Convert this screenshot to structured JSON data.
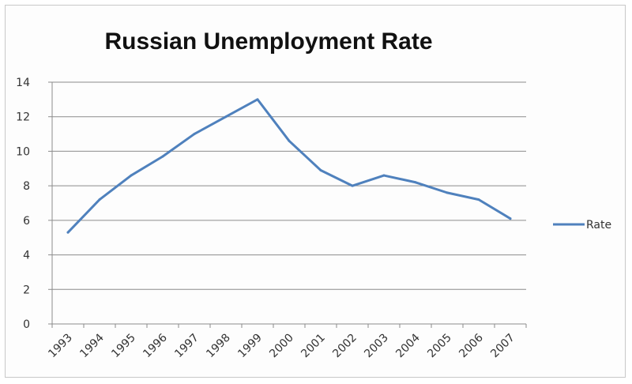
{
  "chart_data": {
    "type": "line",
    "title": "Russian Unemployment Rate",
    "xlabel": "",
    "ylabel": "",
    "categories": [
      "1993",
      "1994",
      "1995",
      "1996",
      "1997",
      "1998",
      "1999",
      "2000",
      "2001",
      "2002",
      "2003",
      "2004",
      "2005",
      "2006",
      "2007"
    ],
    "series": [
      {
        "name": "Rate",
        "color": "#4f81bd",
        "values": [
          5.3,
          7.2,
          8.6,
          9.7,
          11.0,
          12.0,
          13.0,
          10.6,
          8.9,
          8.0,
          8.6,
          8.2,
          7.6,
          7.2,
          6.1
        ]
      }
    ],
    "ylim": [
      0,
      14
    ],
    "yticks": [
      0,
      2,
      4,
      6,
      8,
      10,
      12,
      14
    ],
    "grid": true,
    "legend_position": "right"
  }
}
